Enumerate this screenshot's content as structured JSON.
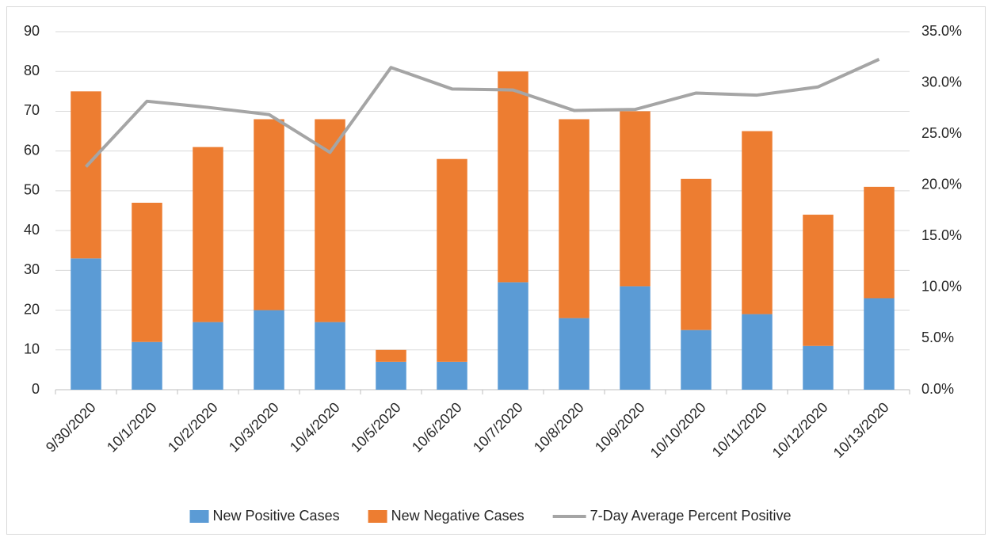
{
  "chart_data": {
    "type": "bar-line",
    "categories": [
      "9/30/2020",
      "10/1/2020",
      "10/2/2020",
      "10/3/2020",
      "10/4/2020",
      "10/5/2020",
      "10/6/2020",
      "10/7/2020",
      "10/8/2020",
      "10/9/2020",
      "10/10/2020",
      "10/11/2020",
      "10/12/2020",
      "10/13/2020"
    ],
    "series": [
      {
        "name": "New Positive Cases",
        "color": "#5b9bd5",
        "type": "bar",
        "values": [
          33,
          12,
          17,
          20,
          17,
          7,
          7,
          27,
          18,
          26,
          15,
          19,
          11,
          23
        ]
      },
      {
        "name": "New Negative Cases",
        "color": "#ed7d31",
        "type": "bar",
        "values": [
          42,
          35,
          44,
          48,
          51,
          3,
          51,
          53,
          50,
          44,
          38,
          46,
          33,
          28
        ]
      },
      {
        "name": "7-Day Average Percent Positive",
        "color": "#a5a5a5",
        "type": "line",
        "axis": "y2",
        "values": [
          21.8,
          28.2,
          27.6,
          26.9,
          23.2,
          31.5,
          29.4,
          29.3,
          27.3,
          27.4,
          29.0,
          28.8,
          29.6,
          32.3
        ]
      }
    ],
    "ylim": [
      0,
      90
    ],
    "yticks": [
      0,
      10,
      20,
      30,
      40,
      50,
      60,
      70,
      80,
      90
    ],
    "y2lim": [
      0,
      35
    ],
    "y2ticks": [
      {
        "value": 0,
        "label": "0.0%"
      },
      {
        "value": 5,
        "label": "5.0%"
      },
      {
        "value": 10,
        "label": "10.0%"
      },
      {
        "value": 15,
        "label": "15.0%"
      },
      {
        "value": 20,
        "label": "20.0%"
      },
      {
        "value": 25,
        "label": "25.0%"
      },
      {
        "value": 30,
        "label": "30.0%"
      },
      {
        "value": 35,
        "label": "35.0%"
      }
    ],
    "grid": true,
    "stacked": true,
    "legend": "bottom"
  }
}
